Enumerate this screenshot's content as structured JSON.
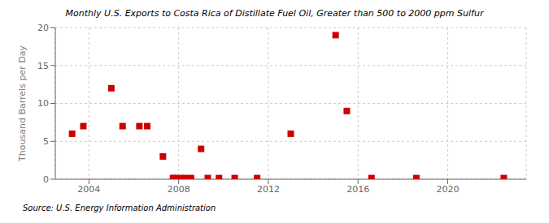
{
  "chart_data": {
    "type": "scatter",
    "title": "Monthly U.S. Exports to Costa Rica of Distillate Fuel Oil, Greater than 500 to 2000 ppm Sulfur",
    "ylabel": "Thousand Barrels per Day",
    "annotations": [
      "Source: U.S. Energy Information Administration"
    ],
    "x": [
      2003.25,
      2003.75,
      2005.0,
      2005.5,
      2006.25,
      2006.6,
      2007.3,
      2007.75,
      2007.85,
      2008.1,
      2008.3,
      2008.55,
      2009.0,
      2009.3,
      2009.8,
      2010.5,
      2011.5,
      2013.0,
      2015.0,
      2015.5,
      2016.6,
      2018.6,
      2022.5
    ],
    "values": [
      6.0,
      7.0,
      12.0,
      7.0,
      7.0,
      7.0,
      3.0,
      0.15,
      0.15,
      0.15,
      0.15,
      0.15,
      4.0,
      0.15,
      0.15,
      0.15,
      0.15,
      6.0,
      19.0,
      9.0,
      0.15,
      0.15,
      0.15
    ],
    "color": "#cc0000",
    "marker": "square",
    "xlim": [
      2002.5,
      2023.5
    ],
    "ylim": [
      0,
      20
    ],
    "xticks": [
      2004,
      2008,
      2012,
      2016,
      2020
    ],
    "yticks": [
      0,
      5,
      10,
      15,
      20
    ],
    "grid": true
  }
}
